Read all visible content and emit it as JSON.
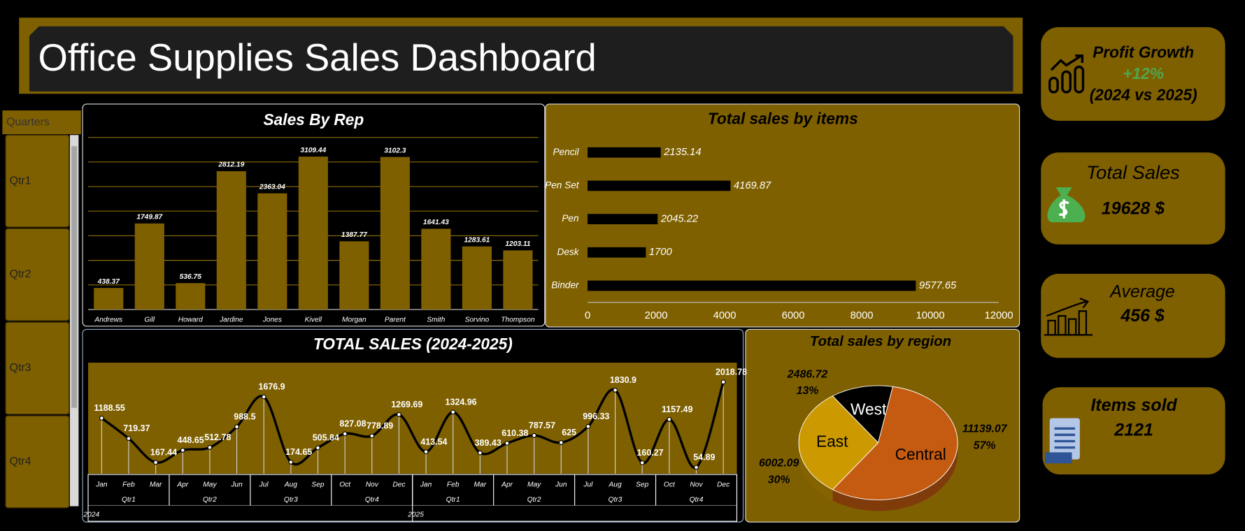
{
  "header": {
    "title": "Office Supplies Sales Dashboard"
  },
  "slicer": {
    "title": "Quarters",
    "items": [
      "Qtr1",
      "Qtr2",
      "Qtr3",
      "Qtr4"
    ]
  },
  "kpis": [
    {
      "title": "Profit Growth",
      "value": "+12%",
      "note": "(2024 vs 2025)"
    },
    {
      "title": "Total Sales",
      "value": "19628 $"
    },
    {
      "title": "Average",
      "value": "456 $"
    },
    {
      "title": "Items sold",
      "value": "2121"
    }
  ],
  "chart_data": [
    {
      "type": "bar",
      "title": "Sales By Rep",
      "categories": [
        "Andrews",
        "Gill",
        "Howard",
        "Jardine",
        "Jones",
        "Kivell",
        "Morgan",
        "Parent",
        "Smith",
        "Sorvino",
        "Thompson"
      ],
      "values": [
        438.37,
        1749.87,
        536.75,
        2812.19,
        2363.04,
        3109.44,
        1387.77,
        3102.3,
        1641.43,
        1283.61,
        1203.11
      ],
      "color": "#7f6000",
      "ylim": [
        0,
        3500
      ],
      "yticks": [
        0,
        500,
        1000,
        1500,
        2000,
        2500,
        3000,
        3500
      ],
      "grid": true
    },
    {
      "type": "hbar",
      "title": "Total sales by items",
      "categories": [
        "Pencil",
        "Pen Set",
        "Pen",
        "Desk",
        "Binder"
      ],
      "values": [
        2135.14,
        4169.87,
        2045.22,
        1700,
        9577.65
      ],
      "color": "#000000",
      "xlim": [
        0,
        12000
      ],
      "xticks": [
        0,
        2000,
        4000,
        6000,
        8000,
        10000,
        12000
      ]
    },
    {
      "type": "line",
      "title": "TOTAL SALES (2024-2025)",
      "categories": [
        "Jan",
        "Feb",
        "Mar",
        "Apr",
        "May",
        "Jun",
        "Jul",
        "Aug",
        "Sep",
        "Oct",
        "Nov",
        "Dec",
        "Jan",
        "Feb",
        "Mar",
        "Apr",
        "May",
        "Jun",
        "Jul",
        "Aug",
        "Sep",
        "Oct",
        "Nov",
        "Dec"
      ],
      "quarters": [
        "Qtr1",
        "Qtr2",
        "Qtr3",
        "Qtr4",
        "Qtr1",
        "Qtr2",
        "Qtr3",
        "Qtr4"
      ],
      "years": [
        "2024",
        "2025"
      ],
      "values": [
        1188.55,
        719.37,
        167.44,
        448.65,
        512.78,
        988.5,
        1676.9,
        174.65,
        505.84,
        827.08,
        778.89,
        1269.69,
        413.54,
        1324.96,
        389.43,
        610.38,
        787.57,
        625,
        996.33,
        1830.9,
        160.27,
        1157.49,
        54.89,
        2018.78
      ],
      "color": "#000000",
      "ylim": [
        0,
        2500
      ]
    },
    {
      "type": "pie",
      "title": "Total sales by region",
      "categories": [
        "West",
        "Central",
        "East"
      ],
      "values": [
        2486.72,
        11139.07,
        6002.09
      ],
      "shares": [
        13,
        57,
        30
      ],
      "share_labels": [
        "13%",
        "57%",
        "30%"
      ],
      "colors": [
        "#000000",
        "#c55a11",
        "#cc9900"
      ]
    }
  ]
}
